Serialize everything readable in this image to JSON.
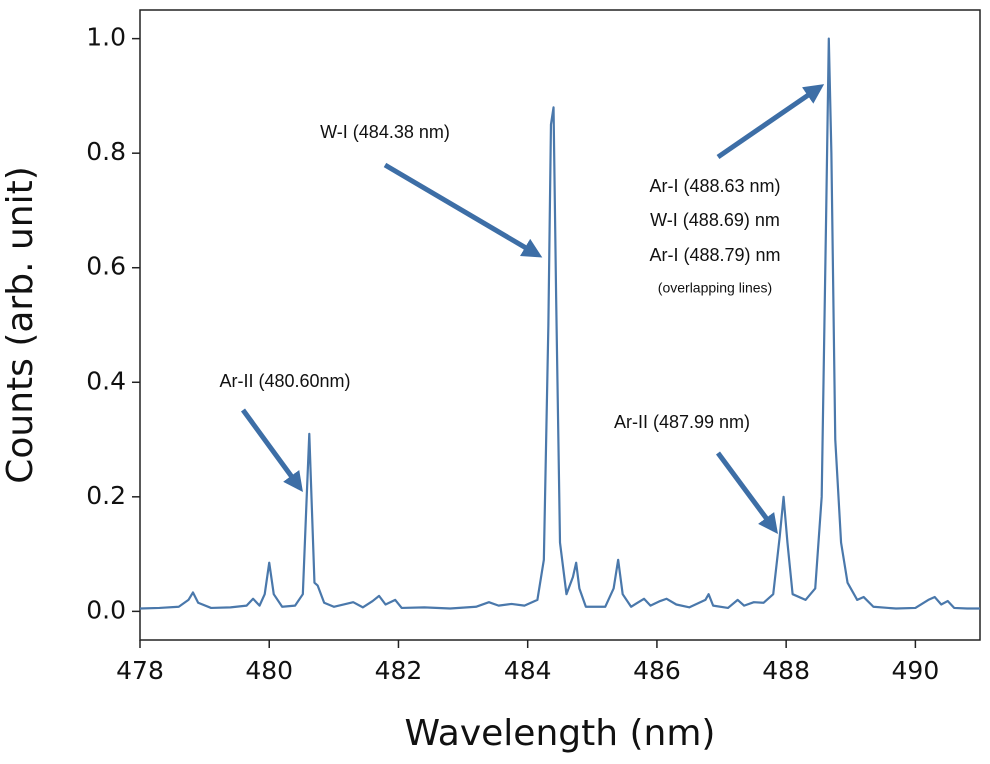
{
  "chart_data": {
    "type": "line",
    "xlabel": "Wavelength (nm)",
    "ylabel": "Counts (arb. unit)",
    "xlim": [
      478,
      491
    ],
    "xticks": [
      478,
      480,
      482,
      484,
      486,
      488,
      490
    ],
    "ylim": [
      -0.05,
      1.05
    ],
    "yticks": [
      {
        "value": 0,
        "label": "0.0"
      },
      {
        "value": 0.2,
        "label": "0.2"
      },
      {
        "value": 0.4,
        "label": "0.4"
      },
      {
        "value": 0.6,
        "label": "0.6"
      },
      {
        "value": 0.8,
        "label": "0.8"
      },
      {
        "value": 1,
        "label": "1.0"
      }
    ],
    "annotations": [
      "W-I (484.38 nm)",
      "Ar-I (488.63 nm)",
      "W-I (488.69) nm",
      "Ar-I (488.79) nm",
      "(overlapping lines)",
      "Ar-II (480.60nm)",
      "Ar-II (487.99 nm)"
    ],
    "series": [
      {
        "color": "#4a78ab",
        "x": [
          478.0,
          478.3,
          478.6,
          478.75,
          478.82,
          478.9,
          479.1,
          479.4,
          479.65,
          479.75,
          479.85,
          479.93,
          480.0,
          480.07,
          480.2,
          480.4,
          480.52,
          480.58,
          480.62,
          480.66,
          480.7,
          480.75,
          480.85,
          481.0,
          481.3,
          481.45,
          481.6,
          481.7,
          481.8,
          481.95,
          482.05,
          482.4,
          482.8,
          483.2,
          483.4,
          483.55,
          483.75,
          483.95,
          484.15,
          484.25,
          484.32,
          484.36,
          484.4,
          484.44,
          484.5,
          484.6,
          484.7,
          484.75,
          484.8,
          484.9,
          485.2,
          485.33,
          485.4,
          485.47,
          485.6,
          485.8,
          485.9,
          486.05,
          486.15,
          486.3,
          486.5,
          486.75,
          486.8,
          486.87,
          487.1,
          487.25,
          487.35,
          487.5,
          487.65,
          487.8,
          487.9,
          487.96,
          488.02,
          488.1,
          488.3,
          488.45,
          488.55,
          488.62,
          488.66,
          488.7,
          488.76,
          488.85,
          488.95,
          489.1,
          489.2,
          489.35,
          489.7,
          490.0,
          490.2,
          490.3,
          490.4,
          490.5,
          490.6,
          490.8,
          491.0
        ],
        "values": [
          0.005,
          0.006,
          0.008,
          0.02,
          0.033,
          0.015,
          0.006,
          0.007,
          0.01,
          0.022,
          0.01,
          0.03,
          0.085,
          0.03,
          0.008,
          0.01,
          0.03,
          0.2,
          0.31,
          0.18,
          0.05,
          0.045,
          0.015,
          0.008,
          0.016,
          0.007,
          0.018,
          0.027,
          0.012,
          0.02,
          0.006,
          0.007,
          0.005,
          0.008,
          0.016,
          0.01,
          0.013,
          0.01,
          0.02,
          0.09,
          0.5,
          0.85,
          0.88,
          0.55,
          0.12,
          0.03,
          0.06,
          0.085,
          0.04,
          0.008,
          0.008,
          0.04,
          0.09,
          0.03,
          0.008,
          0.022,
          0.01,
          0.018,
          0.022,
          0.012,
          0.007,
          0.02,
          0.03,
          0.01,
          0.006,
          0.02,
          0.01,
          0.016,
          0.015,
          0.03,
          0.13,
          0.2,
          0.12,
          0.03,
          0.02,
          0.04,
          0.2,
          0.7,
          1.0,
          0.8,
          0.3,
          0.12,
          0.05,
          0.02,
          0.025,
          0.008,
          0.005,
          0.006,
          0.02,
          0.025,
          0.012,
          0.018,
          0.006,
          0.005,
          0.005
        ]
      }
    ]
  }
}
